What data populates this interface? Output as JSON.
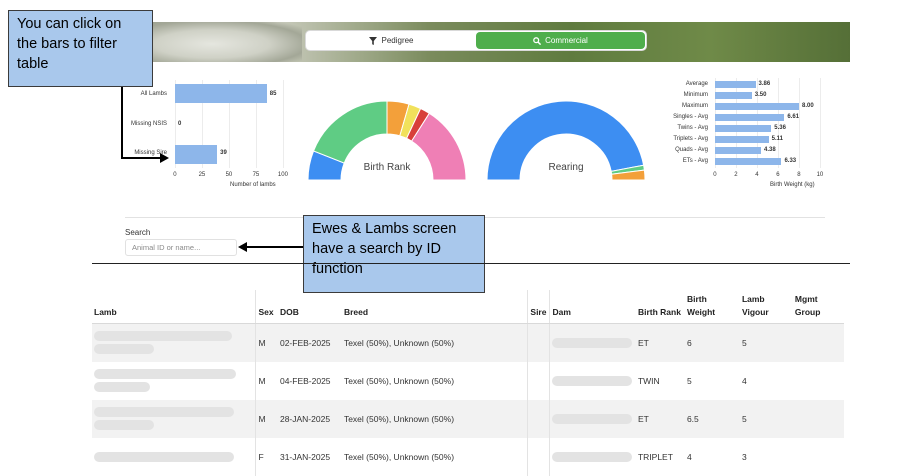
{
  "tabs": [
    {
      "label": "Pedigree",
      "icon": "filter-icon",
      "active": false
    },
    {
      "label": "Commercial",
      "icon": "search-icon",
      "active": true
    }
  ],
  "callouts": {
    "filter_note": "You can click on the bars to filter table",
    "search_note": "Ewes & Lambs screen have a search by ID function"
  },
  "lamb_chart": {
    "xlabel": "Number of lambs",
    "ticks": [
      "0",
      "25",
      "50",
      "75",
      "100"
    ],
    "bars": [
      {
        "label": "All Lambs",
        "value": 85
      },
      {
        "label": "Missing NSIS",
        "value": 0
      },
      {
        "label": "Missing Sire",
        "value": 39
      }
    ]
  },
  "birth_rank_donut": {
    "label": "Birth Rank",
    "segments": [
      {
        "color": "#3d8ef2",
        "fraction": 0.12
      },
      {
        "color": "#5fcc84",
        "fraction": 0.38
      },
      {
        "color": "#f3a03a",
        "fraction": 0.09
      },
      {
        "color": "#f1e15b",
        "fraction": 0.05
      },
      {
        "color": "#d8403b",
        "fraction": 0.04
      },
      {
        "color": "#ef7fb5",
        "fraction": 0.32
      }
    ]
  },
  "rearing_donut": {
    "label": "Rearing",
    "segments": [
      {
        "color": "#3d8ef2",
        "fraction": 0.94
      },
      {
        "color": "#5fcc84",
        "fraction": 0.02
      },
      {
        "color": "#f3a03a",
        "fraction": 0.04
      }
    ]
  },
  "birth_weight_chart": {
    "xlabel": "Birth Weight (kg)",
    "ticks": [
      "0",
      "2",
      "4",
      "6",
      "8",
      "10"
    ],
    "bars": [
      {
        "label": "Average",
        "value": 3.86,
        "text": "3.86"
      },
      {
        "label": "Minimum",
        "value": 3.5,
        "text": "3.50"
      },
      {
        "label": "Maximum",
        "value": 8.0,
        "text": "8.00"
      },
      {
        "label": "Singles - Avg",
        "value": 6.61,
        "text": "6.61"
      },
      {
        "label": "Twins - Avg",
        "value": 5.36,
        "text": "5.36"
      },
      {
        "label": "Triplets - Avg",
        "value": 5.11,
        "text": "5.11"
      },
      {
        "label": "Quads - Avg",
        "value": 4.38,
        "text": "4.38"
      },
      {
        "label": "ETs - Avg",
        "value": 6.33,
        "text": "6.33"
      }
    ]
  },
  "search": {
    "label": "Search",
    "placeholder": "Animal ID or name..."
  },
  "table": {
    "headers": {
      "lamb": "Lamb",
      "sex": "Sex",
      "dob": "DOB",
      "breed": "Breed",
      "sire": "Sire",
      "dam": "Dam",
      "birth_rank": "Birth Rank",
      "birth_weight": "Birth Weight",
      "lamb_vigour": "Lamb Vigour",
      "mgmt_group": "Mgmt Group"
    },
    "rows": [
      {
        "sex": "M",
        "dob": "02-FEB-2025",
        "breed": "Texel (50%), Unknown (50%)",
        "birth_rank": "ET",
        "birth_weight": "6",
        "lamb_vigour": "5",
        "mgmt_group": ""
      },
      {
        "sex": "M",
        "dob": "04-FEB-2025",
        "breed": "Texel (50%), Unknown (50%)",
        "birth_rank": "TWIN",
        "birth_weight": "5",
        "lamb_vigour": "4",
        "mgmt_group": ""
      },
      {
        "sex": "M",
        "dob": "28-JAN-2025",
        "breed": "Texel (50%), Unknown (50%)",
        "birth_rank": "ET",
        "birth_weight": "6.5",
        "lamb_vigour": "5",
        "mgmt_group": ""
      },
      {
        "sex": "F",
        "dob": "31-JAN-2025",
        "breed": "Texel (50%), Unknown (50%)",
        "birth_rank": "TRIPLET",
        "birth_weight": "4",
        "lamb_vigour": "3",
        "mgmt_group": ""
      }
    ]
  }
}
